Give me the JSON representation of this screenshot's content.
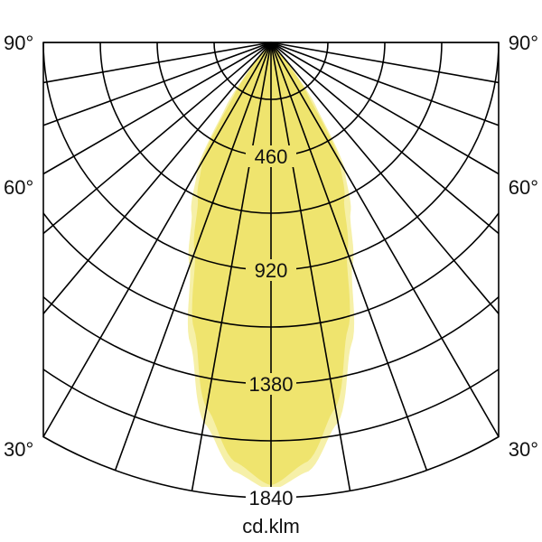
{
  "chart_data": {
    "type": "polar",
    "title": "",
    "unit_label": "cd.klm",
    "angle_labels": [
      "90°",
      "60°",
      "30°"
    ],
    "radial_ticks": [
      460,
      920,
      1380,
      1840
    ],
    "radial_range": [
      0,
      1840
    ],
    "radial_grid_step": 230,
    "angular_grid_step_deg": 10,
    "grid": true,
    "angles_deg": [
      0,
      5,
      10,
      15,
      20,
      25,
      30,
      35,
      40,
      45
    ],
    "series": [
      {
        "values": [
          1810,
          1740,
          1560,
          1260,
          960,
          760,
          600,
          320,
          80,
          0
        ],
        "color": "#f6f0a8"
      },
      {
        "values": [
          1790,
          1700,
          1500,
          1200,
          900,
          700,
          560,
          260,
          60,
          0
        ],
        "color": "#efe46e"
      }
    ]
  }
}
